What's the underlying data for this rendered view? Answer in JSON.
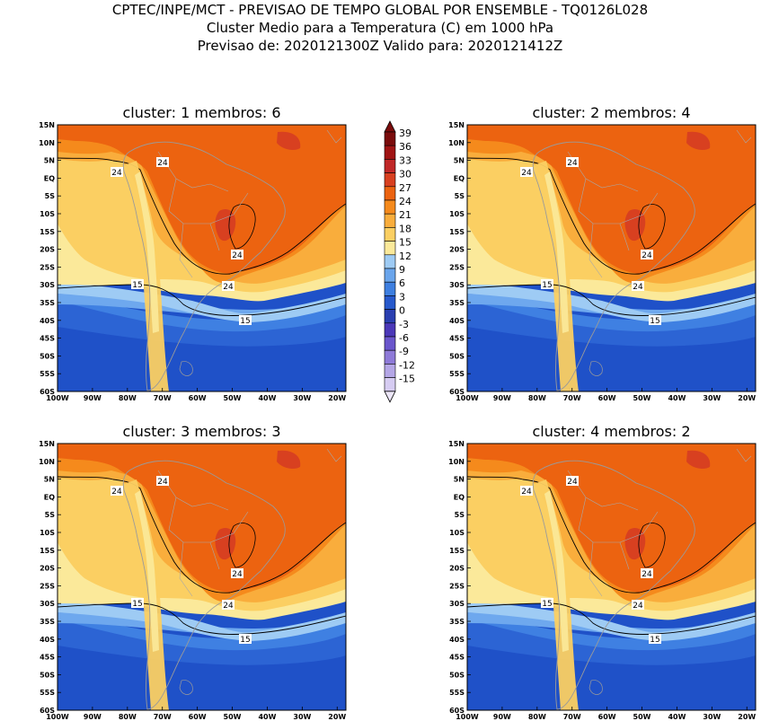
{
  "header": {
    "line1": "CPTEC/INPE/MCT - PREVISAO DE TEMPO GLOBAL POR ENSEMBLE - TQ0126L028",
    "line2": "Cluster Medio para a Temperatura (C) em 1000 hPa",
    "line3": "Previsao de: 2020121300Z   Valido para: 2020121412Z"
  },
  "axes": {
    "lat_labels": [
      "15N",
      "10N",
      "5N",
      "EQ",
      "5S",
      "10S",
      "15S",
      "20S",
      "25S",
      "30S",
      "35S",
      "40S",
      "45S",
      "50S",
      "55S",
      "60S"
    ],
    "lon_labels": [
      "100W",
      "90W",
      "80W",
      "70W",
      "60W",
      "50W",
      "40W",
      "30W",
      "20W"
    ]
  },
  "colorbar": {
    "labels": [
      "39",
      "36",
      "33",
      "30",
      "27",
      "24",
      "21",
      "18",
      "15",
      "12",
      "9",
      "6",
      "3",
      "0",
      "-3",
      "-6",
      "-9",
      "-12",
      "-15"
    ],
    "colors": [
      "#7a0c0c",
      "#a01414",
      "#c02828",
      "#d84020",
      "#ec6310",
      "#f58a1c",
      "#f9ad3c",
      "#fbcf62",
      "#fbe99a",
      "#9ecbf4",
      "#6aa5ec",
      "#3e7fe0",
      "#2759cc",
      "#2a3fb0",
      "#4b38b8",
      "#6a56cc",
      "#8e7ad8",
      "#b4a6e6",
      "#d6ccf2"
    ]
  },
  "panels": [
    {
      "title": "cluster: 1   membros: 6",
      "contour_labels": [
        "24",
        "24",
        "24",
        "24",
        "15",
        "15"
      ]
    },
    {
      "title": "cluster: 2   membros: 4",
      "contour_labels": [
        "24",
        "24",
        "24",
        "24",
        "15",
        "15"
      ]
    },
    {
      "title": "cluster: 3   membros: 3",
      "contour_labels": [
        "24",
        "24",
        "24",
        "24",
        "15",
        "15"
      ]
    },
    {
      "title": "cluster: 4   membros: 2",
      "contour_labels": [
        "24",
        "24",
        "24",
        "24",
        "15",
        "15"
      ]
    }
  ]
}
